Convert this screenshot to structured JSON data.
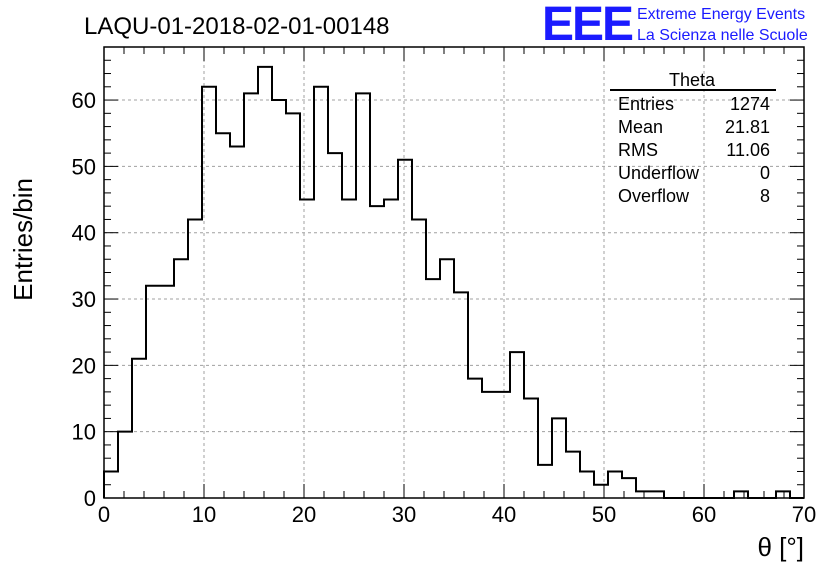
{
  "header": {
    "title": "LAQU-01-2018-02-01-00148",
    "brand_logo": "EEE",
    "brand_line1": "Extreme Energy Events",
    "brand_line2": "La Scienza nelle Scuole"
  },
  "stats": {
    "name": "Theta",
    "rows": [
      {
        "label": "Entries",
        "value": "1274"
      },
      {
        "label": "Mean",
        "value": "21.81"
      },
      {
        "label": "RMS",
        "value": "11.06"
      },
      {
        "label": "Underflow",
        "value": "0"
      },
      {
        "label": "Overflow",
        "value": "8"
      }
    ]
  },
  "colors": {
    "brand": "#1a1aff",
    "line": "#000000",
    "grid": "#a0a0a0"
  },
  "chart_data": {
    "type": "histogram",
    "title": "LAQU-01-2018-02-01-00148",
    "xlabel": "θ [°]",
    "ylabel": "Entries/bin",
    "xlim": [
      0,
      70
    ],
    "ylim": [
      0,
      68
    ],
    "bin_width": 1.4,
    "bin_edges_start": 0,
    "xticks": [
      0,
      10,
      20,
      30,
      40,
      50,
      60,
      70
    ],
    "yticks": [
      0,
      10,
      20,
      30,
      40,
      50,
      60
    ],
    "grid": true,
    "values": [
      4,
      10,
      21,
      32,
      32,
      36,
      42,
      62,
      55,
      53,
      61,
      65,
      60,
      58,
      45,
      62,
      52,
      45,
      61,
      44,
      45,
      51,
      42,
      33,
      36,
      31,
      18,
      16,
      16,
      22,
      15,
      5,
      12,
      7,
      4,
      2,
      4,
      3,
      1,
      1,
      0,
      0,
      0,
      0,
      0,
      1,
      0,
      0,
      1,
      0
    ]
  }
}
